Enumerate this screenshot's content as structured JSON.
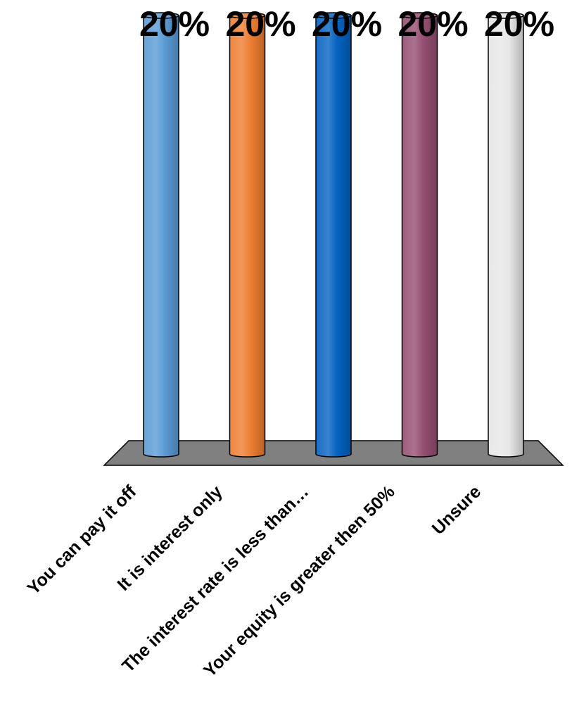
{
  "chart_data": {
    "type": "bar",
    "style": "3d-cylinder",
    "categories": [
      "You can pay it off",
      "It is interest only",
      "The interest rate is less than…",
      "Your equity is greater then 50%",
      "Unsure"
    ],
    "values": [
      20,
      20,
      20,
      20,
      20
    ],
    "data_labels": [
      "20%",
      "20%",
      "20%",
      "20%",
      "20%"
    ],
    "ylim": [
      0,
      20
    ],
    "unit": "%",
    "title": "",
    "xlabel": "",
    "ylabel": "",
    "grid": false,
    "legend": "none",
    "colors": [
      "#5b9bd5",
      "#ed7d31",
      "#0563c1",
      "#954f72",
      "#e7e6e6"
    ],
    "floor_color": "#808080"
  }
}
